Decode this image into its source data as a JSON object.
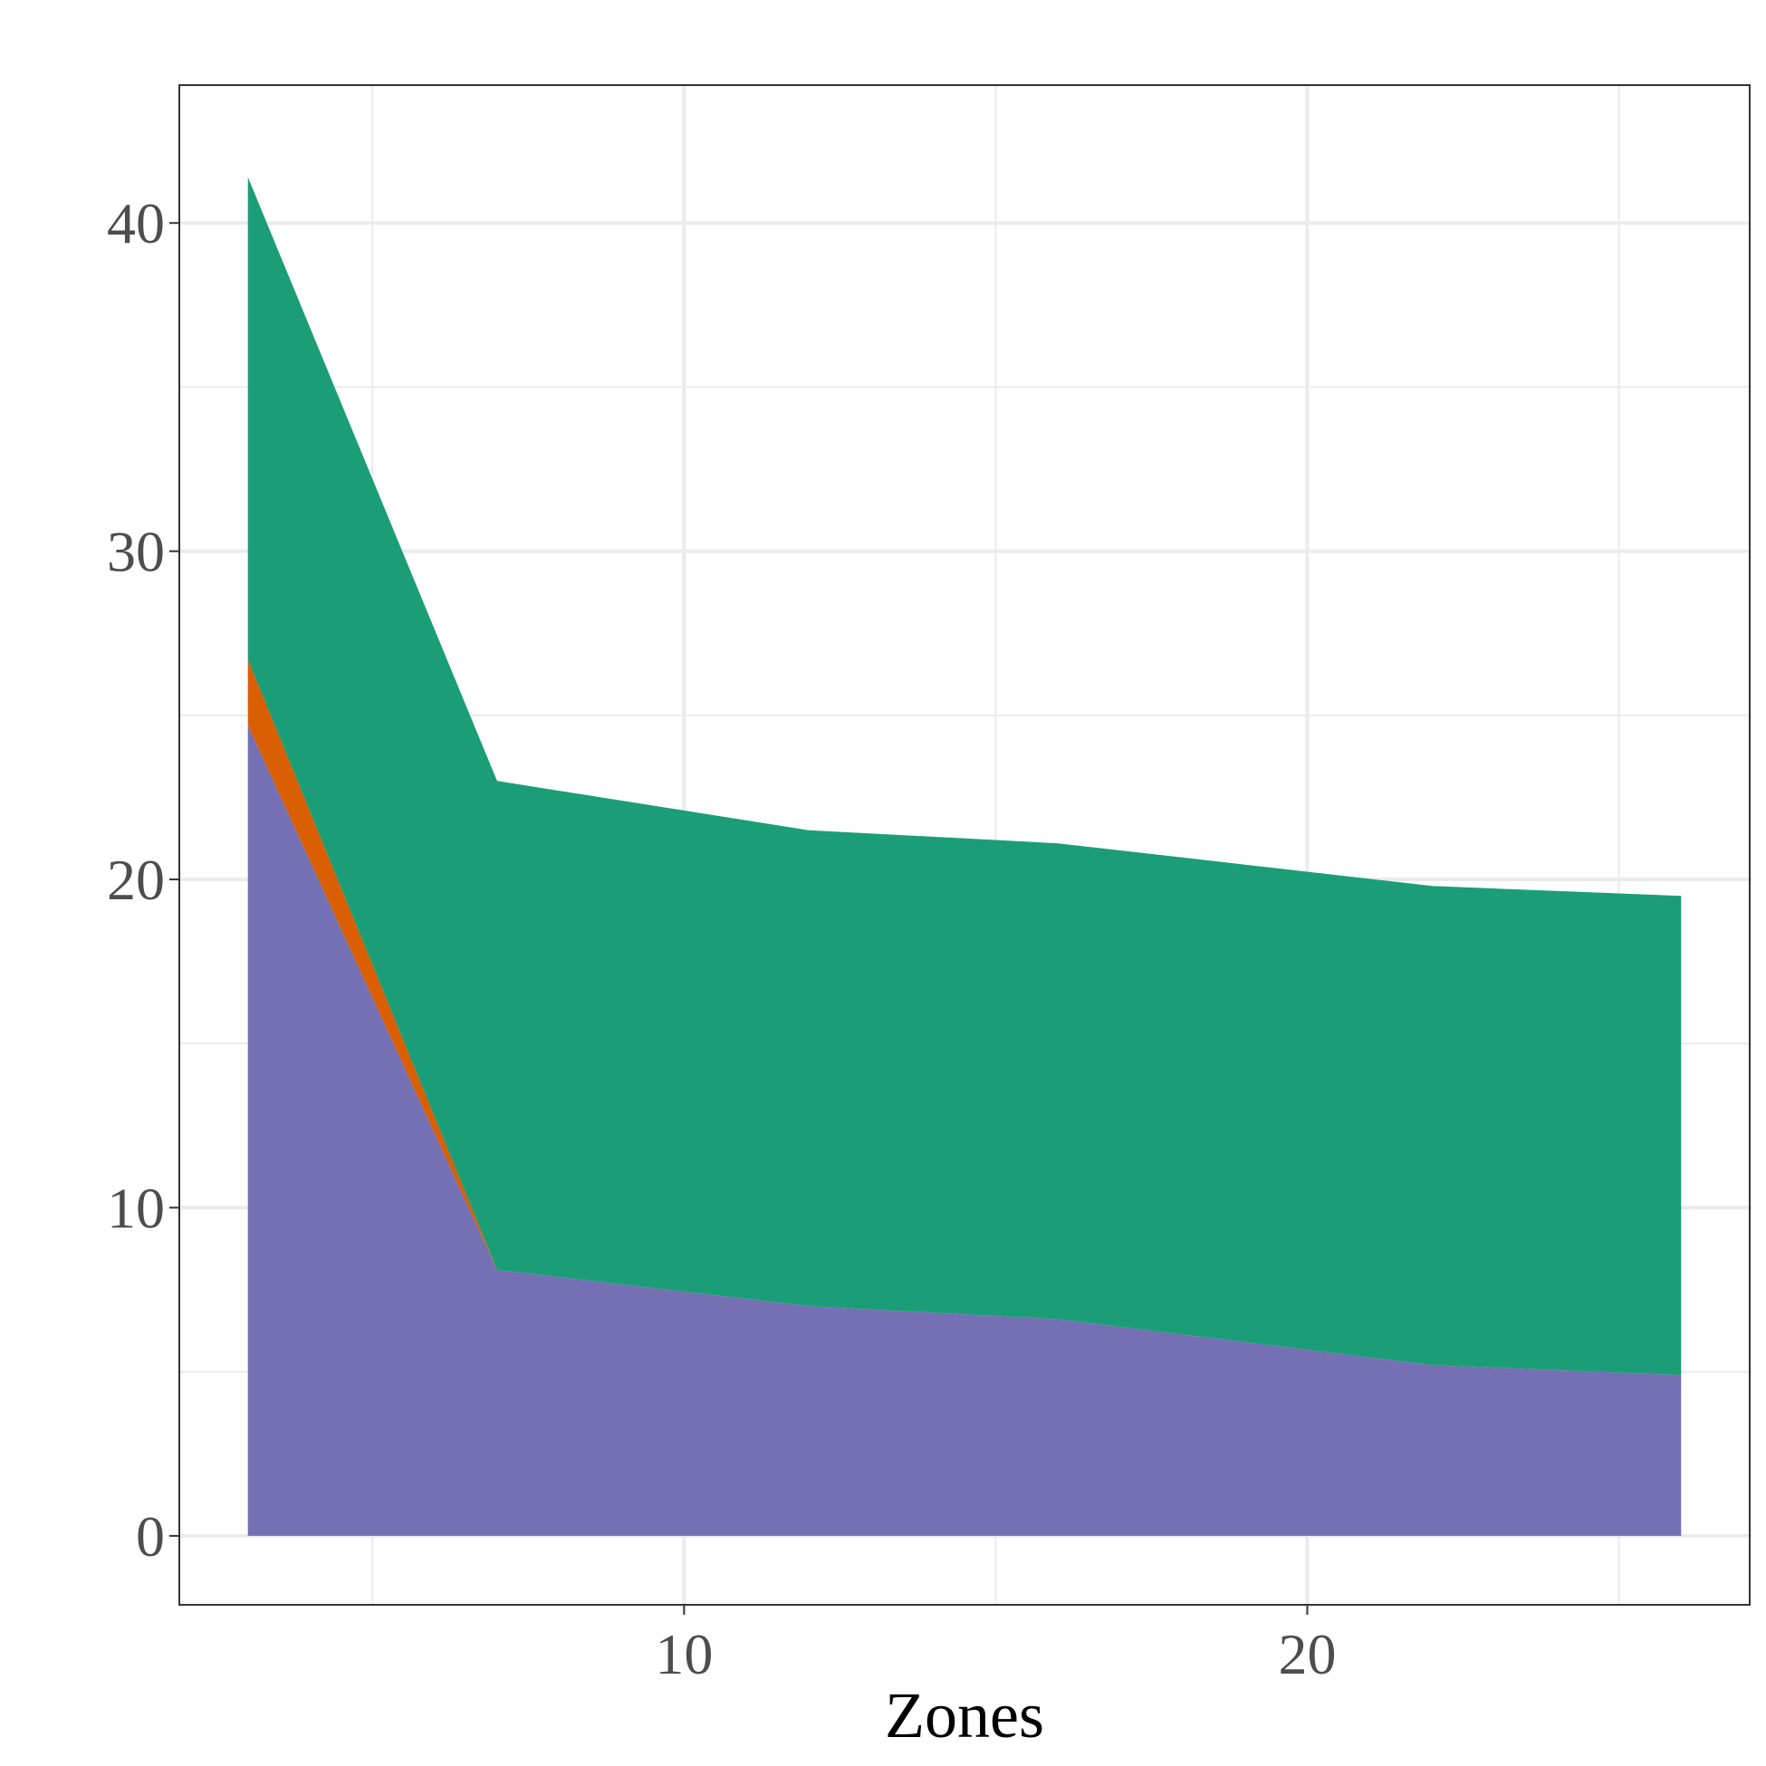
{
  "chart_data": {
    "type": "area",
    "stacked": true,
    "title": "",
    "xlabel": "Zones",
    "ylabel": "",
    "xlim": [
      1.9,
      27.1
    ],
    "ylim": [
      -2.1,
      44.2
    ],
    "x_ticks": [
      10,
      20
    ],
    "x_minor_ticks": [
      5,
      15,
      25
    ],
    "y_ticks": [
      0,
      10,
      20,
      30,
      40
    ],
    "y_minor_ticks": [
      5,
      15,
      25,
      35
    ],
    "grid": true,
    "legend": "none",
    "x": [
      3,
      7,
      12,
      16,
      22,
      26
    ],
    "series": [
      {
        "color": "#7570b3",
        "values": [
          24.7,
          8.1,
          7.0,
          6.6,
          5.2,
          4.9
        ]
      },
      {
        "color": "#d95f02",
        "values": [
          2.0,
          0.0,
          0.0,
          0.0,
          0.0,
          0.0
        ]
      },
      {
        "color": "#1b9e77",
        "values": [
          14.7,
          14.9,
          14.5,
          14.5,
          14.6,
          14.6
        ]
      }
    ],
    "colors": {
      "grid": "#ebebeb",
      "panel_border": "#333333",
      "tick": "#333333"
    }
  }
}
